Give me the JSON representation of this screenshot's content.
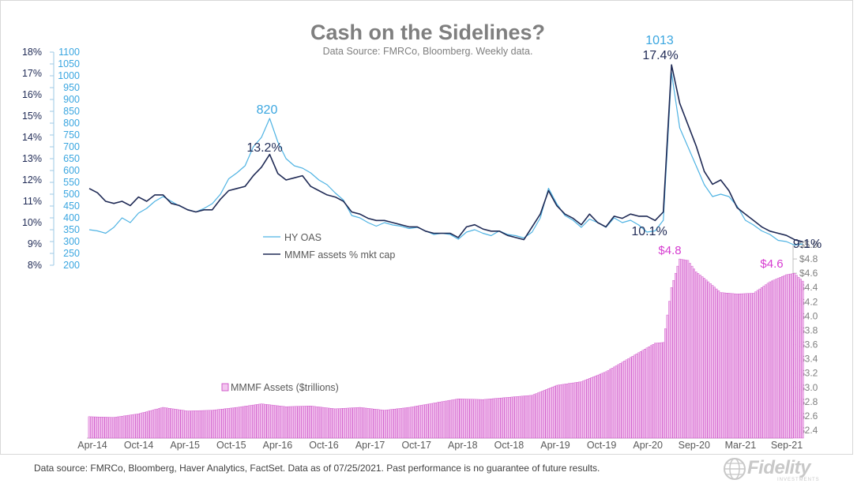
{
  "header": {
    "title": "Cash on the Sidelines?",
    "subtitle": "Data Source: FMRCo, Bloomberg.  Weekly data."
  },
  "footer": {
    "note": "Data source: FMRCo, Bloomberg, Haver Analytics, FactSet. Data as of 07/25/2021. Past performance is no guarantee of future results.",
    "logo_text": "Fidelity",
    "logo_subtext": "INVESTMENTS"
  },
  "colors": {
    "hy_oas": "#4fb3e3",
    "mmmf_pct": "#1f2a55",
    "bars_fill": "#f3c6ef",
    "bars_edge": "#c840c2",
    "callout_pink": "#d63bd0",
    "callout_blue": "#3aa6e0",
    "axis_text_left": "#1f2a55",
    "axis_text_blue": "#3aa6e0",
    "axis_text_right": "#7f7f7f"
  },
  "chart_data": {
    "type": "line",
    "x_tick_labels": [
      "Apr-14",
      "Oct-14",
      "Apr-15",
      "Oct-15",
      "Apr-16",
      "Oct-16",
      "Apr-17",
      "Oct-17",
      "Apr-18",
      "Oct-18",
      "Apr-19",
      "Oct-19",
      "Apr-20",
      "Sep-20",
      "Mar-21",
      "Sep-21"
    ],
    "x_range": [
      "2014-04",
      "2021-09"
    ],
    "axes": {
      "left_pct": {
        "range": [
          8,
          18
        ],
        "ticks": [
          "8%",
          "9%",
          "10%",
          "11%",
          "12%",
          "13%",
          "14%",
          "15%",
          "16%",
          "17%",
          "18%"
        ]
      },
      "left_bps": {
        "range": [
          200,
          1100
        ],
        "ticks": [
          "200",
          "250",
          "300",
          "350",
          "400",
          "450",
          "500",
          "550",
          "600",
          "650",
          "700",
          "750",
          "800",
          "850",
          "900",
          "950",
          "1000",
          "1050",
          "1100"
        ]
      },
      "right_assets": {
        "range": [
          2.4,
          5.0
        ],
        "ticks": [
          "$2.4",
          "$2.6",
          "$2.8",
          "$3.0",
          "$3.2",
          "$3.4",
          "$3.6",
          "$3.8",
          "$4.0",
          "$4.2",
          "$4.4",
          "$4.6",
          "$4.8",
          "$5.0"
        ]
      }
    },
    "series": [
      {
        "name": "HY OAS",
        "axis": "left_bps",
        "points": [
          [
            "2014-04",
            350
          ],
          [
            "2014-05",
            345
          ],
          [
            "2014-06",
            335
          ],
          [
            "2014-07",
            360
          ],
          [
            "2014-08",
            400
          ],
          [
            "2014-09",
            380
          ],
          [
            "2014-10",
            420
          ],
          [
            "2014-11",
            440
          ],
          [
            "2014-12",
            470
          ],
          [
            "2015-01",
            490
          ],
          [
            "2015-02",
            470
          ],
          [
            "2015-03",
            450
          ],
          [
            "2015-04",
            435
          ],
          [
            "2015-05",
            425
          ],
          [
            "2015-06",
            440
          ],
          [
            "2015-07",
            460
          ],
          [
            "2015-08",
            500
          ],
          [
            "2015-09",
            565
          ],
          [
            "2015-10",
            590
          ],
          [
            "2015-11",
            620
          ],
          [
            "2015-12",
            700
          ],
          [
            "2016-01",
            740
          ],
          [
            "2016-02",
            820
          ],
          [
            "2016-03",
            720
          ],
          [
            "2016-04",
            650
          ],
          [
            "2016-05",
            620
          ],
          [
            "2016-06",
            610
          ],
          [
            "2016-07",
            590
          ],
          [
            "2016-08",
            560
          ],
          [
            "2016-09",
            540
          ],
          [
            "2016-10",
            505
          ],
          [
            "2016-11",
            475
          ],
          [
            "2016-12",
            410
          ],
          [
            "2017-01",
            400
          ],
          [
            "2017-02",
            380
          ],
          [
            "2017-03",
            365
          ],
          [
            "2017-04",
            380
          ],
          [
            "2017-05",
            370
          ],
          [
            "2017-06",
            365
          ],
          [
            "2017-07",
            355
          ],
          [
            "2017-08",
            360
          ],
          [
            "2017-09",
            345
          ],
          [
            "2017-10",
            330
          ],
          [
            "2017-11",
            335
          ],
          [
            "2017-12",
            330
          ],
          [
            "2018-01",
            310
          ],
          [
            "2018-02",
            340
          ],
          [
            "2018-03",
            350
          ],
          [
            "2018-04",
            335
          ],
          [
            "2018-05",
            325
          ],
          [
            "2018-06",
            345
          ],
          [
            "2018-07",
            330
          ],
          [
            "2018-08",
            325
          ],
          [
            "2018-09",
            315
          ],
          [
            "2018-10",
            340
          ],
          [
            "2018-11",
            400
          ],
          [
            "2018-12",
            525
          ],
          [
            "2019-01",
            460
          ],
          [
            "2019-02",
            410
          ],
          [
            "2019-03",
            390
          ],
          [
            "2019-04",
            360
          ],
          [
            "2019-05",
            395
          ],
          [
            "2019-06",
            380
          ],
          [
            "2019-07",
            360
          ],
          [
            "2019-08",
            400
          ],
          [
            "2019-09",
            380
          ],
          [
            "2019-10",
            390
          ],
          [
            "2019-11",
            370
          ],
          [
            "2019-12",
            340
          ],
          [
            "2020-01",
            345
          ],
          [
            "2020-02",
            390
          ],
          [
            "2020-03",
            1013
          ],
          [
            "2020-04",
            780
          ],
          [
            "2020-05",
            700
          ],
          [
            "2020-06",
            620
          ],
          [
            "2020-07",
            540
          ],
          [
            "2020-08",
            490
          ],
          [
            "2020-09",
            500
          ],
          [
            "2020-10",
            490
          ],
          [
            "2020-11",
            450
          ],
          [
            "2020-12",
            390
          ],
          [
            "2021-01",
            370
          ],
          [
            "2021-02",
            345
          ],
          [
            "2021-03",
            330
          ],
          [
            "2021-04",
            305
          ],
          [
            "2021-05",
            300
          ],
          [
            "2021-06",
            285
          ],
          [
            "2021-07",
            290
          ]
        ]
      },
      {
        "name": "MMMF assets % mkt cap",
        "axis": "left_pct",
        "points": [
          [
            "2014-04",
            11.6
          ],
          [
            "2014-05",
            11.4
          ],
          [
            "2014-06",
            11.0
          ],
          [
            "2014-07",
            10.9
          ],
          [
            "2014-08",
            11.0
          ],
          [
            "2014-09",
            10.8
          ],
          [
            "2014-10",
            11.2
          ],
          [
            "2014-11",
            11.0
          ],
          [
            "2014-12",
            11.3
          ],
          [
            "2015-01",
            11.3
          ],
          [
            "2015-02",
            10.9
          ],
          [
            "2015-03",
            10.8
          ],
          [
            "2015-04",
            10.6
          ],
          [
            "2015-05",
            10.5
          ],
          [
            "2015-06",
            10.6
          ],
          [
            "2015-07",
            10.6
          ],
          [
            "2015-08",
            11.1
          ],
          [
            "2015-09",
            11.5
          ],
          [
            "2015-10",
            11.6
          ],
          [
            "2015-11",
            11.7
          ],
          [
            "2015-12",
            12.2
          ],
          [
            "2016-01",
            12.6
          ],
          [
            "2016-02",
            13.2
          ],
          [
            "2016-03",
            12.3
          ],
          [
            "2016-04",
            12.0
          ],
          [
            "2016-05",
            12.1
          ],
          [
            "2016-06",
            12.2
          ],
          [
            "2016-07",
            11.7
          ],
          [
            "2016-08",
            11.5
          ],
          [
            "2016-09",
            11.3
          ],
          [
            "2016-10",
            11.2
          ],
          [
            "2016-11",
            11.0
          ],
          [
            "2016-12",
            10.5
          ],
          [
            "2017-01",
            10.4
          ],
          [
            "2017-02",
            10.2
          ],
          [
            "2017-03",
            10.1
          ],
          [
            "2017-04",
            10.1
          ],
          [
            "2017-05",
            10.0
          ],
          [
            "2017-06",
            9.9
          ],
          [
            "2017-07",
            9.8
          ],
          [
            "2017-08",
            9.8
          ],
          [
            "2017-09",
            9.6
          ],
          [
            "2017-10",
            9.5
          ],
          [
            "2017-11",
            9.5
          ],
          [
            "2017-12",
            9.5
          ],
          [
            "2018-01",
            9.3
          ],
          [
            "2018-02",
            9.8
          ],
          [
            "2018-03",
            9.9
          ],
          [
            "2018-04",
            9.7
          ],
          [
            "2018-05",
            9.6
          ],
          [
            "2018-06",
            9.6
          ],
          [
            "2018-07",
            9.4
          ],
          [
            "2018-08",
            9.3
          ],
          [
            "2018-09",
            9.2
          ],
          [
            "2018-10",
            9.8
          ],
          [
            "2018-11",
            10.4
          ],
          [
            "2018-12",
            11.5
          ],
          [
            "2019-01",
            10.8
          ],
          [
            "2019-02",
            10.4
          ],
          [
            "2019-03",
            10.2
          ],
          [
            "2019-04",
            9.9
          ],
          [
            "2019-05",
            10.4
          ],
          [
            "2019-06",
            10.0
          ],
          [
            "2019-07",
            9.8
          ],
          [
            "2019-08",
            10.3
          ],
          [
            "2019-09",
            10.2
          ],
          [
            "2019-10",
            10.4
          ],
          [
            "2019-11",
            10.3
          ],
          [
            "2019-12",
            10.3
          ],
          [
            "2020-01",
            10.1
          ],
          [
            "2020-02",
            10.5
          ],
          [
            "2020-03",
            17.4
          ],
          [
            "2020-04",
            15.6
          ],
          [
            "2020-05",
            14.6
          ],
          [
            "2020-06",
            13.6
          ],
          [
            "2020-07",
            12.4
          ],
          [
            "2020-08",
            11.8
          ],
          [
            "2020-09",
            12.0
          ],
          [
            "2020-10",
            11.5
          ],
          [
            "2020-11",
            10.7
          ],
          [
            "2020-12",
            10.4
          ],
          [
            "2021-01",
            10.1
          ],
          [
            "2021-02",
            9.8
          ],
          [
            "2021-03",
            9.6
          ],
          [
            "2021-04",
            9.5
          ],
          [
            "2021-05",
            9.4
          ],
          [
            "2021-06",
            9.2
          ],
          [
            "2021-07",
            9.1
          ]
        ]
      },
      {
        "name": "MMMF Assets ($trillions)",
        "axis": "right_assets",
        "type": "bar",
        "points": [
          [
            "2014-04",
            2.59
          ],
          [
            "2014-07",
            2.58
          ],
          [
            "2014-10",
            2.63
          ],
          [
            "2015-01",
            2.72
          ],
          [
            "2015-04",
            2.67
          ],
          [
            "2015-07",
            2.68
          ],
          [
            "2015-10",
            2.72
          ],
          [
            "2016-01",
            2.77
          ],
          [
            "2016-04",
            2.73
          ],
          [
            "2016-07",
            2.74
          ],
          [
            "2016-10",
            2.7
          ],
          [
            "2017-01",
            2.72
          ],
          [
            "2017-04",
            2.68
          ],
          [
            "2017-07",
            2.72
          ],
          [
            "2017-10",
            2.78
          ],
          [
            "2018-01",
            2.84
          ],
          [
            "2018-04",
            2.83
          ],
          [
            "2018-07",
            2.86
          ],
          [
            "2018-10",
            2.89
          ],
          [
            "2019-01",
            3.03
          ],
          [
            "2019-04",
            3.08
          ],
          [
            "2019-07",
            3.22
          ],
          [
            "2019-10",
            3.42
          ],
          [
            "2020-01",
            3.62
          ],
          [
            "2020-02",
            3.63
          ],
          [
            "2020-03",
            4.4
          ],
          [
            "2020-04",
            4.8
          ],
          [
            "2020-05",
            4.78
          ],
          [
            "2020-06",
            4.62
          ],
          [
            "2020-07",
            4.53
          ],
          [
            "2020-09",
            4.33
          ],
          [
            "2020-11",
            4.31
          ],
          [
            "2021-01",
            4.32
          ],
          [
            "2021-03",
            4.48
          ],
          [
            "2021-05",
            4.58
          ],
          [
            "2021-06",
            4.6
          ],
          [
            "2021-07",
            4.49
          ]
        ]
      }
    ],
    "annotations": [
      {
        "text": "820",
        "series": "HY OAS",
        "at": "2016-02"
      },
      {
        "text": "13.2%",
        "series": "MMMF assets % mkt cap",
        "at": "2016-02"
      },
      {
        "text": "1013",
        "series": "HY OAS",
        "at": "2020-03"
      },
      {
        "text": "17.4%",
        "series": "MMMF assets % mkt cap",
        "at": "2020-03"
      },
      {
        "text": "10.1%",
        "series": "MMMF assets % mkt cap",
        "at": "2020-01"
      },
      {
        "text": "9.1%",
        "series": "MMMF assets % mkt cap",
        "at": "2021-07"
      },
      {
        "text": "$4.8",
        "series": "MMMF Assets ($trillions)",
        "at": "2020-04"
      },
      {
        "text": "$4.6",
        "series": "MMMF Assets ($trillions)",
        "at": "2021-06"
      }
    ],
    "legend": {
      "position": "inside-left",
      "entries": [
        "HY OAS",
        "MMMF assets % mkt cap",
        "MMMF Assets ($trillions)"
      ]
    },
    "grid": false
  }
}
